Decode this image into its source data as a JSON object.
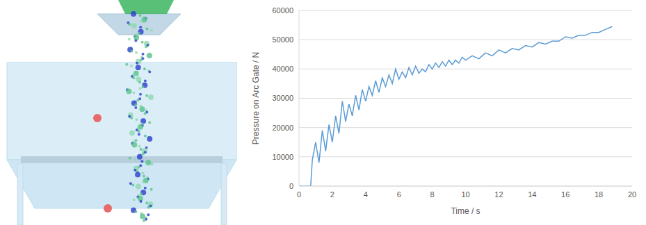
{
  "chart_data": {
    "type": "line",
    "xlabel": "Time / s",
    "ylabel": "Pressure on Arc Gate / N",
    "x": [
      0,
      0.6,
      0.7,
      0.8,
      1.0,
      1.2,
      1.4,
      1.6,
      1.8,
      2.0,
      2.2,
      2.4,
      2.6,
      2.8,
      3.0,
      3.2,
      3.4,
      3.6,
      3.8,
      4.0,
      4.2,
      4.4,
      4.6,
      4.8,
      5.0,
      5.2,
      5.4,
      5.6,
      5.8,
      6.0,
      6.2,
      6.4,
      6.6,
      6.8,
      7.0,
      7.2,
      7.4,
      7.6,
      7.8,
      8.0,
      8.2,
      8.4,
      8.6,
      8.8,
      9.0,
      9.2,
      9.4,
      9.6,
      9.8,
      10.0,
      10.4,
      10.8,
      11.2,
      11.6,
      12.0,
      12.4,
      12.8,
      13.2,
      13.6,
      14.0,
      14.4,
      14.8,
      15.2,
      15.6,
      16.0,
      16.4,
      16.8,
      17.2,
      17.6,
      18.0,
      18.4,
      18.8
    ],
    "values": [
      0,
      0,
      0,
      9000,
      15000,
      8000,
      19000,
      12000,
      21000,
      15000,
      24000,
      18000,
      29000,
      22000,
      28000,
      24000,
      31000,
      26000,
      33000,
      29000,
      34000,
      31000,
      36000,
      32000,
      37000,
      34000,
      38000,
      35000,
      40000,
      36500,
      39000,
      37000,
      40500,
      38000,
      41000,
      38500,
      40000,
      39000,
      41500,
      40000,
      42000,
      40500,
      42500,
      41000,
      43000,
      41500,
      43000,
      42000,
      44000,
      43000,
      44500,
      43500,
      45500,
      44500,
      46500,
      45500,
      47000,
      46500,
      48000,
      47500,
      49000,
      48500,
      49500,
      49500,
      51000,
      50500,
      51500,
      51500,
      52500,
      52500,
      53500,
      54500
    ],
    "color": "#5b9bd5",
    "xlim": [
      0,
      20
    ],
    "xticks": [
      0,
      2,
      4,
      6,
      8,
      10,
      12,
      14,
      16,
      18,
      20
    ],
    "ylim": [
      0,
      60000
    ],
    "yticks": [
      0,
      10000,
      20000,
      30000,
      40000,
      50000,
      60000
    ],
    "grid": true
  }
}
